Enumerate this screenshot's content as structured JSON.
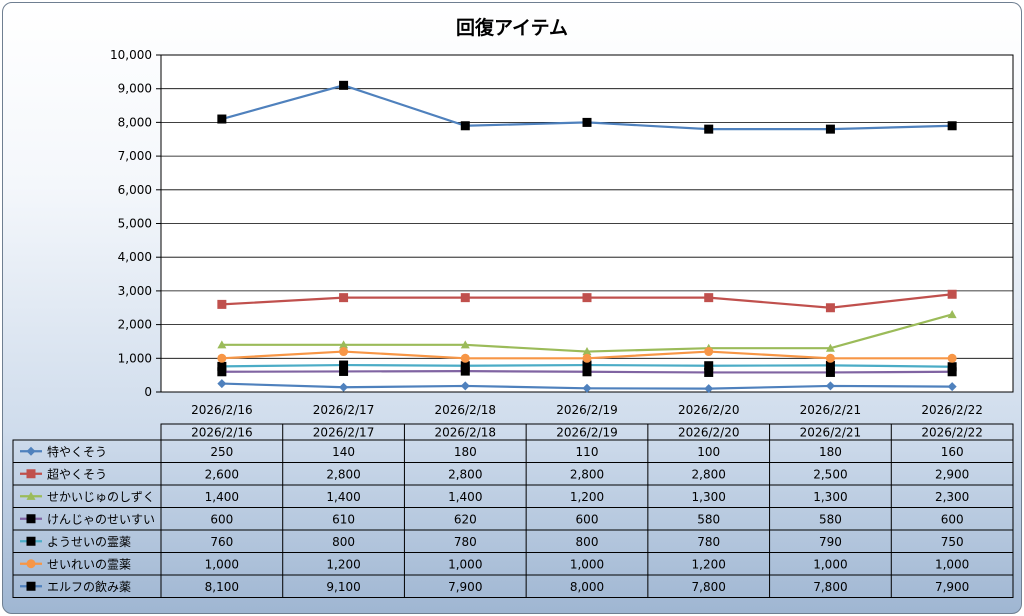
{
  "chart_data": {
    "type": "line",
    "title": "回復アイテム",
    "categories": [
      "2026/2/16",
      "2026/2/17",
      "2026/2/18",
      "2026/2/19",
      "2026/2/20",
      "2026/2/21",
      "2026/2/22"
    ],
    "ylim": [
      0,
      10000
    ],
    "yticks": [
      0,
      1000,
      2000,
      3000,
      4000,
      5000,
      6000,
      7000,
      8000,
      9000,
      10000
    ],
    "ytick_labels": [
      "0",
      "1,000",
      "2,000",
      "3,000",
      "4,000",
      "5,000",
      "6,000",
      "7,000",
      "8,000",
      "9,000",
      "10,000"
    ],
    "grid": true,
    "legend": "data-table-below",
    "series": [
      {
        "name": "特やくそう",
        "color": "#4f81bd",
        "marker": "diamond",
        "marker_color": "#4f81bd",
        "values": [
          250,
          140,
          180,
          110,
          100,
          180,
          160
        ],
        "labels": [
          "250",
          "140",
          "180",
          "110",
          "100",
          "180",
          "160"
        ]
      },
      {
        "name": "超やくそう",
        "color": "#c0504d",
        "marker": "square",
        "marker_color": "#c0504d",
        "values": [
          2600,
          2800,
          2800,
          2800,
          2800,
          2500,
          2900
        ],
        "labels": [
          "2,600",
          "2,800",
          "2,800",
          "2,800",
          "2,800",
          "2,500",
          "2,900"
        ]
      },
      {
        "name": "せかいじゅのしずく",
        "color": "#9bbb59",
        "marker": "triangle",
        "marker_color": "#9bbb59",
        "values": [
          1400,
          1400,
          1400,
          1200,
          1300,
          1300,
          2300
        ],
        "labels": [
          "1,400",
          "1,400",
          "1,400",
          "1,200",
          "1,300",
          "1,300",
          "2,300"
        ]
      },
      {
        "name": "けんじゃのせいすい",
        "color": "#8064a2",
        "marker": "square",
        "marker_color": "#000000",
        "values": [
          600,
          610,
          620,
          600,
          580,
          580,
          600
        ],
        "labels": [
          "600",
          "610",
          "620",
          "600",
          "580",
          "580",
          "600"
        ]
      },
      {
        "name": "ようせいの霊薬",
        "color": "#4bacc6",
        "marker": "square",
        "marker_color": "#000000",
        "values": [
          760,
          800,
          780,
          800,
          780,
          790,
          750
        ],
        "labels": [
          "760",
          "800",
          "780",
          "800",
          "780",
          "790",
          "750"
        ]
      },
      {
        "name": "せいれいの霊薬",
        "color": "#f79646",
        "marker": "circle",
        "marker_color": "#f79646",
        "values": [
          1000,
          1200,
          1000,
          1000,
          1200,
          1000,
          1000
        ],
        "labels": [
          "1,000",
          "1,200",
          "1,000",
          "1,000",
          "1,200",
          "1,000",
          "1,000"
        ]
      },
      {
        "name": "エルフの飲み薬",
        "color": "#4f81bd",
        "marker": "square",
        "marker_color": "#000000",
        "values": [
          8100,
          9100,
          7900,
          8000,
          7800,
          7800,
          7900
        ],
        "labels": [
          "8,100",
          "9,100",
          "7,900",
          "8,000",
          "7,800",
          "7,800",
          "7,900"
        ]
      }
    ]
  }
}
